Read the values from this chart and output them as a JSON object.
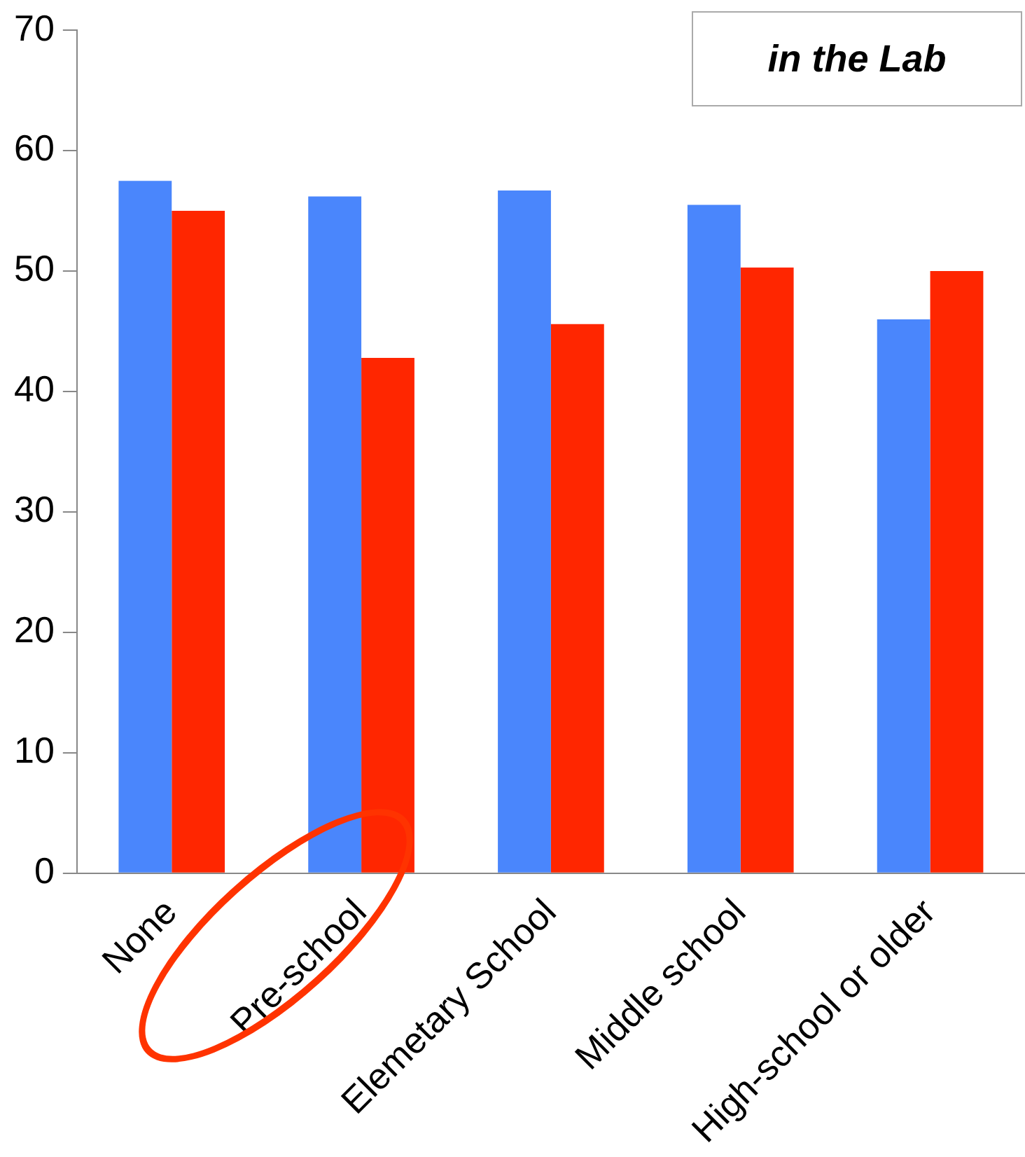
{
  "chart_data": {
    "type": "bar",
    "categories": [
      "None",
      "Pre-school",
      "Elemetary School",
      "Middle school",
      "High-school or older"
    ],
    "series": [
      {
        "color": "#4a86fc",
        "values": [
          57.5,
          56.2,
          56.7,
          55.5,
          46.0
        ]
      },
      {
        "color": "#ff2600",
        "values": [
          55.0,
          42.8,
          45.6,
          50.3,
          50.0
        ]
      }
    ],
    "ylim": [
      0,
      70
    ],
    "yticks": [
      0,
      10,
      20,
      30,
      40,
      50,
      60,
      70
    ],
    "grid": false,
    "legend": false,
    "annotations": [
      "in the Lab"
    ]
  }
}
